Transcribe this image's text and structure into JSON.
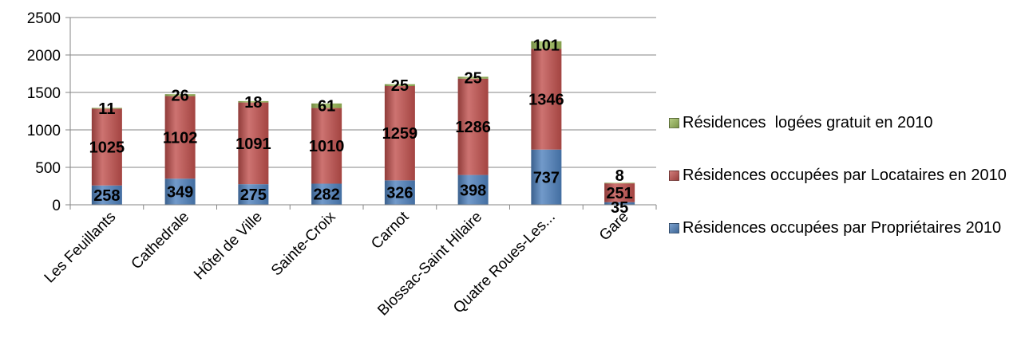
{
  "chart_data": {
    "type": "bar",
    "stacked": true,
    "categories": [
      "Les Feuillants",
      "Cathedrale",
      "Hôtel de Ville",
      "Sainte-Croix",
      "Carnot",
      "Blossac-Saint Hilaire",
      "Quatre Roues-Les...",
      "Gare"
    ],
    "series": [
      {
        "name": "Résidences occupées par Propriétaires 2010",
        "values": [
          258,
          349,
          275,
          282,
          326,
          398,
          737,
          35
        ],
        "color": "#4f81bd"
      },
      {
        "name": "Résidences occupées par Locataires en 2010",
        "values": [
          1025,
          1102,
          1091,
          1010,
          1259,
          1286,
          1346,
          251
        ],
        "color": "#c0504d"
      },
      {
        "name": "Résidences  logées gratuit en 2010",
        "values": [
          11,
          26,
          18,
          61,
          25,
          25,
          101,
          8
        ],
        "color": "#9bbb59"
      }
    ],
    "yticks": [
      "0",
      "500",
      "1000",
      "1500",
      "2000",
      "2500"
    ],
    "ylim": [
      0,
      2500
    ],
    "grid": true,
    "legend_position": "right",
    "legend_order": [
      2,
      1,
      0
    ]
  }
}
